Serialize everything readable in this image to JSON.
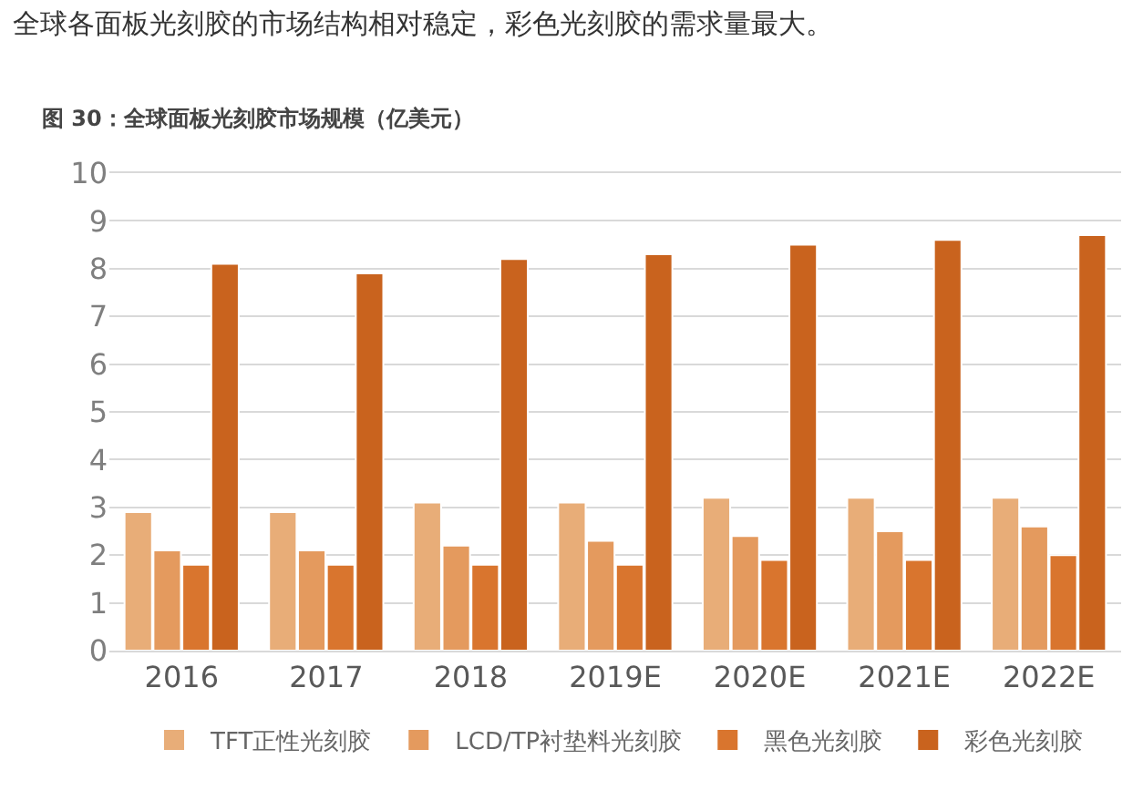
{
  "chart_data": {
    "type": "bar",
    "title": "全球各面板光刻胶的市场结构相对稳定，彩色光刻胶的需求量最大。",
    "subtitle": "图 30：全球面板光刻胶市场规模（亿美元）",
    "categories": [
      "2016",
      "2017",
      "2018",
      "2019E",
      "2020E",
      "2021E",
      "2022E"
    ],
    "series": [
      {
        "name": "TFT正性光刻胶",
        "color": "#e8ad78",
        "values": [
          2.9,
          2.9,
          3.1,
          3.1,
          3.2,
          3.2,
          3.2
        ]
      },
      {
        "name": "LCD/TP衬垫料光刻胶",
        "color": "#e49a5e",
        "values": [
          2.1,
          2.1,
          2.2,
          2.3,
          2.4,
          2.5,
          2.6
        ]
      },
      {
        "name": "黑色光刻胶",
        "color": "#d9752e",
        "values": [
          1.8,
          1.8,
          1.8,
          1.8,
          1.9,
          1.9,
          2.0
        ]
      },
      {
        "name": "彩色光刻胶",
        "color": "#c9631e",
        "values": [
          8.1,
          7.9,
          8.2,
          8.3,
          8.5,
          8.6,
          8.7
        ]
      }
    ],
    "ylim": [
      0,
      10
    ],
    "yticks": [
      0,
      1,
      2,
      3,
      4,
      5,
      6,
      7,
      8,
      9,
      10
    ],
    "grid": "y",
    "legend": "bottom"
  }
}
